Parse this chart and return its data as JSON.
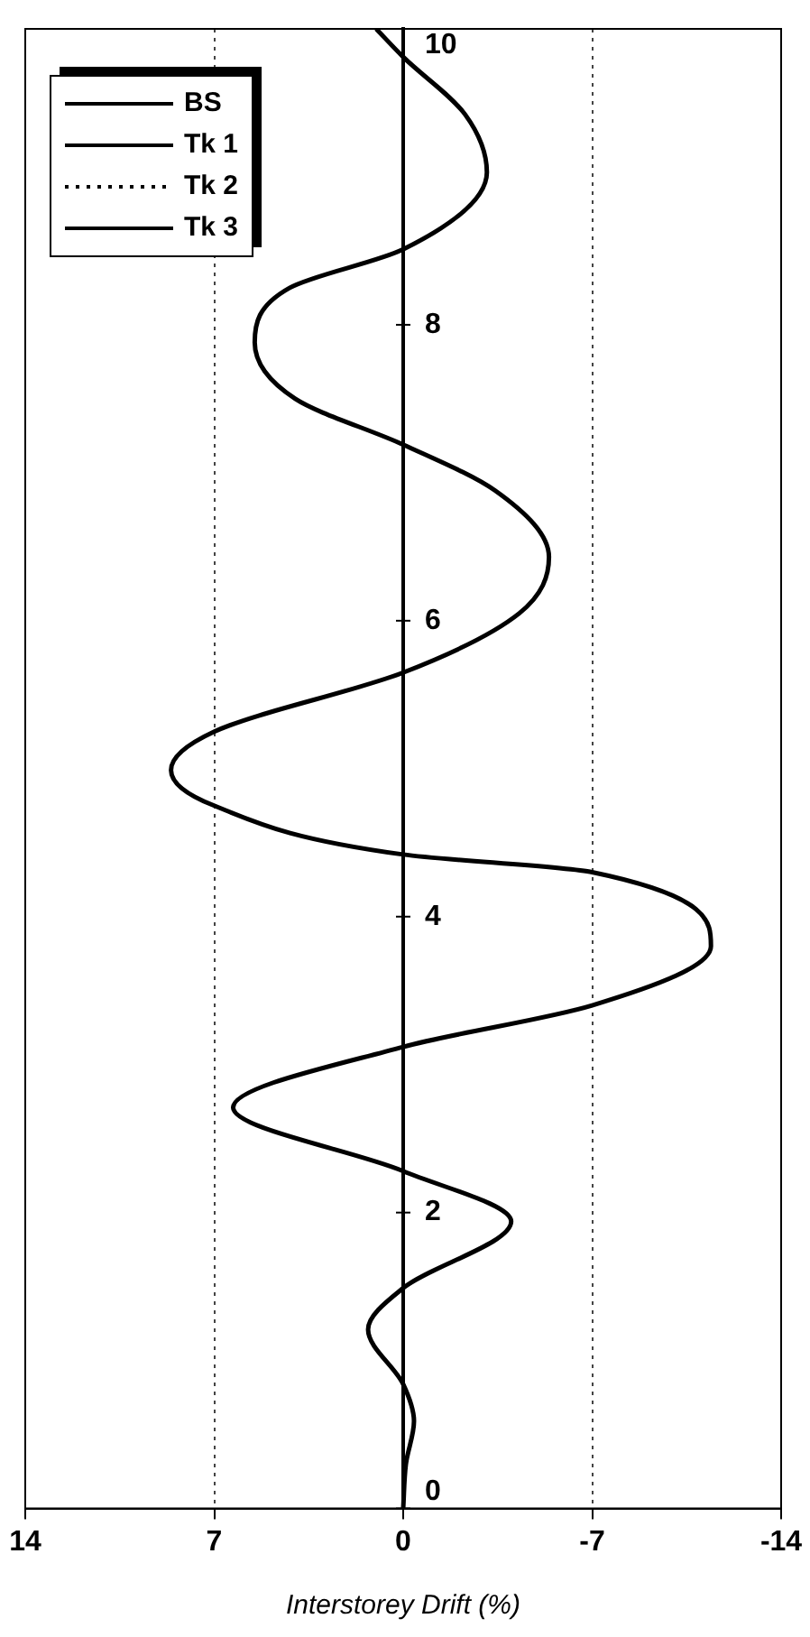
{
  "chart_data": {
    "type": "line",
    "xlabel": "Interstorey Drift (%)",
    "xlim": [
      14,
      -14
    ],
    "xticks": [
      14,
      7,
      0,
      -7,
      -14
    ],
    "ylim": [
      0,
      10
    ],
    "yticks": [
      0,
      2,
      4,
      6,
      8,
      10
    ],
    "series": [
      {
        "name": "BS",
        "color": "#000000",
        "line_style": "solid",
        "x": [
          0,
          -0.1,
          -0.4,
          0,
          1.3,
          0,
          -4.0,
          0,
          6.3,
          0,
          -7.0,
          -11.4,
          -7.0,
          0,
          7.0,
          8.6,
          7.0,
          0,
          -4.3,
          -5.4,
          -3.4,
          0,
          4.0,
          5.5,
          4.2,
          0,
          -3.1,
          -2.3,
          0,
          1.0
        ],
        "values": [
          0,
          0.3,
          0.59,
          0.84,
          1.21,
          1.49,
          1.94,
          2.28,
          2.71,
          3.12,
          3.4,
          3.8,
          4.3,
          4.42,
          4.75,
          4.99,
          5.25,
          5.65,
          6.05,
          6.43,
          6.88,
          7.19,
          7.5,
          7.88,
          8.25,
          8.51,
          9.03,
          9.42,
          9.81,
          10
        ]
      },
      {
        "name": "Tk 1",
        "color": "#000000",
        "line_style": "solid"
      },
      {
        "name": "Tk 2",
        "color": "#000000",
        "line_style": "dotted"
      },
      {
        "name": "Tk 3",
        "color": "#000000",
        "line_style": "solid"
      }
    ],
    "grid": "x",
    "legend": "top left",
    "marker": "none"
  }
}
